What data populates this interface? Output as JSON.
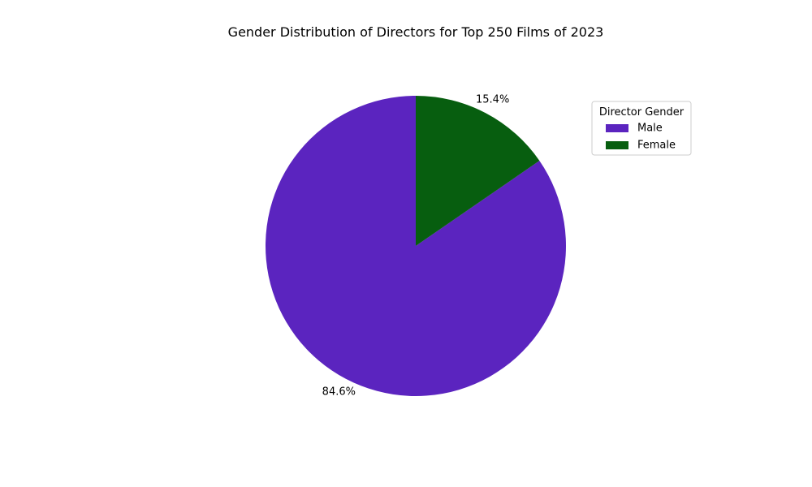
{
  "chart_data": {
    "type": "pie",
    "title": "Gender Distribution of Directors for Top 250 Films of 2023",
    "slices": [
      {
        "label": "Male",
        "value": 84.6,
        "pct_label": "84.6%",
        "color": "#5b24bf"
      },
      {
        "label": "Female",
        "value": 15.4,
        "pct_label": "15.4%",
        "color": "#075e0f"
      }
    ],
    "start_angle_deg": 90,
    "direction": "counterclockwise",
    "legend": {
      "title": "Director Gender",
      "placement": "upper-right",
      "entries": [
        "Male",
        "Female"
      ]
    }
  }
}
